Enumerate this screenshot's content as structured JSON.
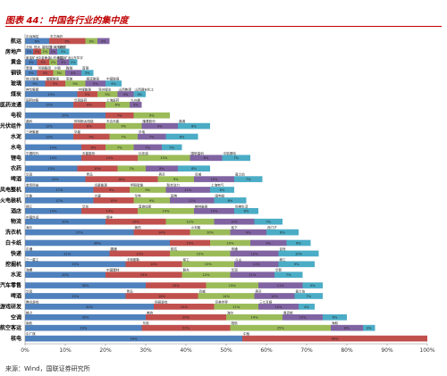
{
  "title": "图表 44：中国各行业的集中度",
  "source": "来源：Wind，国联证券研究所",
  "colors": [
    "#4f81bd",
    "#c0504d",
    "#9bbb59",
    "#8064a2",
    "#4bacc6",
    "#f79646",
    "#2c4d75",
    "#b7d3f1"
  ],
  "chart_data": {
    "type": "bar",
    "orientation": "horizontal",
    "stacked": true,
    "title": "图表 44：中国各行业的集中度",
    "xlim": [
      0,
      100
    ],
    "x_ticks": [
      "0%",
      "10%",
      "20%",
      "30%",
      "40%",
      "50%",
      "60%",
      "70%",
      "80%",
      "90%",
      "100%"
    ],
    "grid": false,
    "categories": [
      {
        "name": "航运",
        "segments": [
          {
            "v": 6,
            "label": "中远海控",
            "pct": "6%"
          },
          {
            "v": 9,
            "label": "东方海外",
            "pct": "9%"
          },
          {
            "v": 3,
            "label": "",
            "pct": "3%"
          },
          {
            "v": 3,
            "label": "",
            "pct": "3%"
          }
        ]
      },
      {
        "name": "房地产",
        "segments": [
          {
            "v": 2,
            "label": "万科",
            "pct": "2%"
          },
          {
            "v": 2,
            "label": "恒大",
            "pct": "2%"
          },
          {
            "v": 2,
            "label": "碧桂园",
            "pct": "2%"
          },
          {
            "v": 2,
            "label": "中海外发展",
            "pct": "2%"
          },
          {
            "v": 3,
            "label": "保利",
            "pct": "3%"
          }
        ]
      },
      {
        "name": "黄金",
        "segments": [
          {
            "v": 3,
            "label": "紫金矿业",
            "pct": "3%"
          },
          {
            "v": 3,
            "label": "中金黄金",
            "pct": "3%"
          },
          {
            "v": 2,
            "label": "山东黄金",
            "pct": "2%"
          },
          {
            "v": 3,
            "label": "招金矿业",
            "pct": "3%"
          },
          {
            "v": 2,
            "label": "山东华宇",
            "pct": "2%"
          }
        ]
      },
      {
        "name": "钢铁",
        "segments": [
          {
            "v": 3,
            "label": "宝钢",
            "pct": "3%"
          },
          {
            "v": 4,
            "label": "河钢集团",
            "pct": "4%"
          },
          {
            "v": 3,
            "label": "沙钢",
            "pct": "3%"
          },
          {
            "v": 4,
            "label": "鞍钢",
            "pct": "4%"
          },
          {
            "v": 3,
            "label": "首钢",
            "pct": "3%"
          }
        ]
      },
      {
        "name": "玻璃",
        "segments": [
          {
            "v": 5,
            "label": "信义玻璃",
            "pct": "5%"
          },
          {
            "v": 5,
            "label": "福耀玻璃",
            "pct": "5%"
          },
          {
            "v": 5,
            "label": "南玻",
            "pct": "5%"
          },
          {
            "v": 5,
            "label": "旗滨玻璃",
            "pct": "5%"
          },
          {
            "v": 4,
            "label": "中国玻璃",
            "pct": "4%"
          }
        ]
      },
      {
        "name": "煤炭",
        "segments": [
          {
            "v": 13,
            "label": "神华集团",
            "pct": "13%"
          },
          {
            "v": 5,
            "label": "中煤能源",
            "pct": "5%"
          },
          {
            "v": 5,
            "label": "兖州煤业",
            "pct": "5%"
          },
          {
            "v": 4,
            "label": "山西焦煤",
            "pct": "4%"
          },
          {
            "v": 3,
            "label": "山西潞安化工",
            "pct": "3%"
          }
        ]
      },
      {
        "name": "医药流通",
        "segments": [
          {
            "v": 12,
            "label": "国药控股",
            "pct": "12%"
          },
          {
            "v": 8,
            "label": "华润医药",
            "pct": "8%"
          },
          {
            "v": 6,
            "label": "上海医药",
            "pct": "6%"
          },
          {
            "v": 3,
            "label": "九州通",
            "pct": "3%"
          }
        ]
      },
      {
        "name": "电视",
        "segments": [
          {
            "v": 20,
            "label": "",
            "pct": "20%"
          },
          {
            "v": 7,
            "label": "",
            "pct": "7%"
          },
          {
            "v": 9,
            "label": "",
            "pct": "9%"
          }
        ]
      },
      {
        "name": "光伏组件",
        "segments": [
          {
            "v": 12,
            "label": "晶科",
            "pct": "12%"
          },
          {
            "v": 8,
            "label": "阿特斯太阳能",
            "pct": "8%"
          },
          {
            "v": 9,
            "label": "天合光能",
            "pct": "9%"
          },
          {
            "v": 9,
            "label": "隆基股份",
            "pct": "9%"
          },
          {
            "v": 8,
            "label": "晶澳",
            "pct": "8%"
          }
        ]
      },
      {
        "name": "水泥",
        "segments": [
          {
            "v": 12,
            "label": "三峡集团",
            "pct": "12%"
          },
          {
            "v": 9,
            "label": "华能",
            "pct": "9%"
          },
          {
            "v": 7,
            "label": "",
            "pct": "7%"
          },
          {
            "v": 7,
            "label": "华电",
            "pct": "7%"
          },
          {
            "v": 8,
            "label": "",
            "pct": "8%"
          }
        ]
      },
      {
        "name": "水电",
        "segments": [
          {
            "v": 14,
            "label": "",
            "pct": "14%"
          },
          {
            "v": 6,
            "label": "",
            "pct": "6%"
          },
          {
            "v": 7,
            "label": "",
            "pct": "7%"
          },
          {
            "v": 7,
            "label": "",
            "pct": "7%"
          },
          {
            "v": 5,
            "label": "",
            "pct": "5%"
          }
        ]
      },
      {
        "name": "锂电",
        "segments": [
          {
            "v": 14,
            "label": "宁德时代",
            "pct": "14%"
          },
          {
            "v": 14,
            "label": "天能股份",
            "pct": "14%"
          },
          {
            "v": 13,
            "label": "比亚迪",
            "pct": "13%"
          },
          {
            "v": 8,
            "label": "国轩高科",
            "pct": "8%"
          },
          {
            "v": 7,
            "label": "中航锂电",
            "pct": "7%"
          }
        ]
      },
      {
        "name": "农药",
        "segments": [
          {
            "v": 13,
            "label": "",
            "pct": "13%"
          },
          {
            "v": 10,
            "label": "",
            "pct": "10%"
          },
          {
            "v": 7,
            "label": "",
            "pct": "7%"
          },
          {
            "v": 8,
            "label": "",
            "pct": "8%"
          },
          {
            "v": 8,
            "label": "",
            "pct": "8%"
          }
        ]
      },
      {
        "name": "啤酒",
        "segments": [
          {
            "v": 15,
            "label": "华润",
            "pct": "15%"
          },
          {
            "v": 18,
            "label": "青岛",
            "pct": "18%"
          },
          {
            "v": 9,
            "label": "燕京",
            "pct": "9%"
          },
          {
            "v": 10,
            "label": "百威",
            "pct": "10%"
          },
          {
            "v": 7,
            "label": "嘉士伯",
            "pct": "7%"
          }
        ]
      },
      {
        "name": "风电整机",
        "segments": [
          {
            "v": 17,
            "label": "金风科技",
            "pct": "17%"
          },
          {
            "v": 9,
            "label": "远景能源",
            "pct": "9%"
          },
          {
            "v": 9,
            "label": "明阳智能",
            "pct": "9%"
          },
          {
            "v": 11,
            "label": "联合动力",
            "pct": "11%"
          },
          {
            "v": 6,
            "label": "上海电气",
            "pct": "6%"
          }
        ]
      },
      {
        "name": "火电装机",
        "segments": [
          {
            "v": 17,
            "label": "华能",
            "pct": "17%"
          },
          {
            "v": 10,
            "label": "大唐",
            "pct": "10%"
          },
          {
            "v": 9,
            "label": "华电",
            "pct": "9%"
          },
          {
            "v": 11,
            "label": "国电",
            "pct": "11%"
          },
          {
            "v": 8,
            "label": "国电投",
            "pct": "8%"
          }
        ]
      },
      {
        "name": "酒店",
        "segments": [
          {
            "v": 14,
            "label": "锦江",
            "pct": "14%"
          },
          {
            "v": 14,
            "label": "华住",
            "pct": "14%"
          },
          {
            "v": 14,
            "label": "首旅如家",
            "pct": "14%"
          },
          {
            "v": 10,
            "label": "格林豪泰",
            "pct": "10%"
          },
          {
            "v": 6,
            "label": "尚美生活",
            "pct": "6%"
          }
        ]
      },
      {
        "name": "物流",
        "segments": [
          {
            "v": 20,
            "label": "中国外运",
            "pct": "20%"
          },
          {
            "v": 15,
            "label": "顺丰",
            "pct": "15%"
          },
          {
            "v": 12,
            "label": "",
            "pct": "12%"
          },
          {
            "v": 10,
            "label": "",
            "pct": "10%"
          },
          {
            "v": 7,
            "label": "",
            "pct": "7%"
          }
        ]
      },
      {
        "name": "洗衣机",
        "segments": [
          {
            "v": 27,
            "label": "海尔",
            "pct": "27%"
          },
          {
            "v": 14,
            "label": "美的",
            "pct": "14%"
          },
          {
            "v": 10,
            "label": "小天鹅",
            "pct": "10%"
          },
          {
            "v": 9,
            "label": "松下",
            "pct": "9%"
          },
          {
            "v": 8,
            "label": "西门子",
            "pct": "8%"
          }
        ]
      },
      {
        "name": "白卡纸",
        "segments": [
          {
            "v": 36,
            "label": "",
            "pct": "36%"
          },
          {
            "v": 10,
            "label": "",
            "pct": "10%"
          },
          {
            "v": 10,
            "label": "",
            "pct": "10%"
          },
          {
            "v": 9,
            "label": "",
            "pct": "9%"
          },
          {
            "v": 6,
            "label": "",
            "pct": "6%"
          }
        ]
      },
      {
        "name": "快递",
        "segments": [
          {
            "v": 21,
            "label": "中通",
            "pct": "21%"
          },
          {
            "v": 15,
            "label": "圆通",
            "pct": "15%"
          },
          {
            "v": 15,
            "label": "韵达",
            "pct": "15%"
          },
          {
            "v": 12,
            "label": "申通",
            "pct": "12%"
          },
          {
            "v": 10,
            "label": "百世",
            "pct": "10%"
          }
        ]
      },
      {
        "name": "挖掘机",
        "segments": [
          {
            "v": 25,
            "label": "三一重工",
            "pct": "25%"
          },
          {
            "v": 14,
            "label": "卡特彼勒",
            "pct": "14%"
          },
          {
            "v": 13,
            "label": "徐工",
            "pct": "13%"
          },
          {
            "v": 11,
            "label": "斗山",
            "pct": "11%"
          },
          {
            "v": 9,
            "label": "柳工",
            "pct": "9%"
          }
        ]
      },
      {
        "name": "水泥",
        "segments": [
          {
            "v": 20,
            "label": "海螺",
            "pct": "20%"
          },
          {
            "v": 19,
            "label": "中国建材",
            "pct": "19%"
          },
          {
            "v": 12,
            "label": "冀东",
            "pct": "12%"
          },
          {
            "v": 11,
            "label": "华润",
            "pct": "11%"
          },
          {
            "v": 7,
            "label": "华新",
            "pct": "7%"
          }
        ]
      },
      {
        "name": "汽车零售",
        "segments": [
          {
            "v": 30,
            "label": "",
            "pct": "30%"
          },
          {
            "v": 15,
            "label": "",
            "pct": "15%"
          },
          {
            "v": 13,
            "label": "",
            "pct": "13%"
          },
          {
            "v": 11,
            "label": "",
            "pct": "11%"
          },
          {
            "v": 5,
            "label": "",
            "pct": "5%"
          }
        ]
      },
      {
        "name": "啤酒",
        "segments": [
          {
            "v": 25,
            "label": "华润",
            "pct": "25%"
          },
          {
            "v": 18,
            "label": "青岛",
            "pct": "18%"
          },
          {
            "v": 14,
            "label": "百威",
            "pct": "14%"
          },
          {
            "v": 10,
            "label": "燕京",
            "pct": "10%"
          },
          {
            "v": 7,
            "label": "嘉士伯",
            "pct": "7%"
          }
        ]
      },
      {
        "name": "移动游戏研发",
        "segments": [
          {
            "v": 32,
            "label": "腾讯游戏",
            "pct": "32%"
          },
          {
            "v": 15,
            "label": "网易游戏",
            "pct": "15%"
          },
          {
            "v": 11,
            "label": "完美世界",
            "pct": "11%"
          },
          {
            "v": 10,
            "label": "三七互娱",
            "pct": "10%"
          },
          {
            "v": 4,
            "label": "",
            "pct": "4%"
          }
        ]
      },
      {
        "name": "空调",
        "segments": [
          {
            "v": 30,
            "label": "格力",
            "pct": "30%"
          },
          {
            "v": 20,
            "label": "美的",
            "pct": "20%"
          },
          {
            "v": 14,
            "label": "海尔",
            "pct": "14%"
          },
          {
            "v": 10,
            "label": "奥克斯",
            "pct": "10%"
          },
          {
            "v": 6,
            "label": "",
            "pct": "6%"
          }
        ]
      },
      {
        "name": "航空客运",
        "segments": [
          {
            "v": 29,
            "label": "南航",
            "pct": "29%"
          },
          {
            "v": 22,
            "label": "东航",
            "pct": "22%"
          },
          {
            "v": 25,
            "label": "国航",
            "pct": "25%"
          },
          {
            "v": 8,
            "label": "海航",
            "pct": "8%"
          },
          {
            "v": 3,
            "label": "",
            "pct": "3%"
          }
        ]
      },
      {
        "name": "核电",
        "segments": [
          {
            "v": 54,
            "label": "中广核",
            "pct": "54%"
          },
          {
            "v": 46,
            "label": "中核",
            "pct": "46%"
          }
        ]
      }
    ]
  }
}
